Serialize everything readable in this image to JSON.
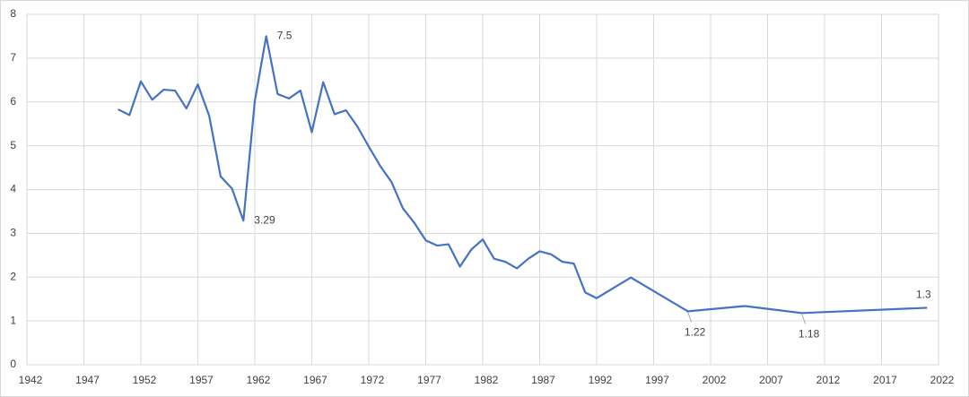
{
  "chart_data": {
    "type": "line",
    "x": [
      1950,
      1951,
      1952,
      1953,
      1954,
      1955,
      1956,
      1957,
      1958,
      1959,
      1960,
      1961,
      1962,
      1963,
      1964,
      1965,
      1966,
      1967,
      1968,
      1969,
      1970,
      1971,
      1972,
      1973,
      1974,
      1975,
      1976,
      1977,
      1978,
      1979,
      1980,
      1981,
      1982,
      1983,
      1984,
      1985,
      1986,
      1987,
      1988,
      1989,
      1990,
      1991,
      1992,
      1995,
      2000,
      2005,
      2010,
      2021
    ],
    "values": [
      5.83,
      5.7,
      6.47,
      6.05,
      6.28,
      6.26,
      5.85,
      6.4,
      5.68,
      4.3,
      4.02,
      3.29,
      6.02,
      7.5,
      6.18,
      6.08,
      6.26,
      5.31,
      6.45,
      5.72,
      5.81,
      5.44,
      4.98,
      4.54,
      4.17,
      3.57,
      3.24,
      2.84,
      2.72,
      2.75,
      2.24,
      2.63,
      2.86,
      2.42,
      2.35,
      2.2,
      2.42,
      2.59,
      2.52,
      2.35,
      2.31,
      1.65,
      1.52,
      1.99,
      1.22,
      1.34,
      1.18,
      1.3
    ],
    "value_labels": [
      null,
      null,
      null,
      null,
      null,
      null,
      null,
      null,
      null,
      null,
      null,
      "3.29",
      null,
      "7.5",
      null,
      null,
      null,
      null,
      null,
      null,
      null,
      null,
      null,
      null,
      null,
      null,
      null,
      null,
      null,
      null,
      null,
      null,
      null,
      null,
      null,
      null,
      null,
      null,
      null,
      null,
      null,
      null,
      null,
      null,
      "1.22",
      null,
      "1.18",
      "1.3"
    ],
    "color": "#4472c4",
    "xlim": [
      1942,
      2022
    ],
    "xticks": [
      1942,
      1947,
      1952,
      1957,
      1962,
      1967,
      1972,
      1977,
      1982,
      1987,
      1992,
      1997,
      2002,
      2007,
      2012,
      2017,
      2022
    ],
    "ylim": [
      0,
      8
    ],
    "yticks": [
      0,
      1,
      2,
      3,
      4,
      5,
      6,
      7,
      8
    ],
    "grid": true
  }
}
